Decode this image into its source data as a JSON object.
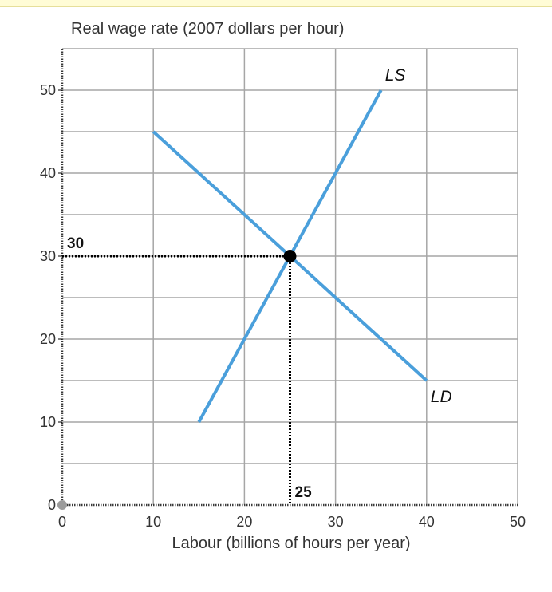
{
  "chart_data": {
    "type": "line",
    "ylabel": "Real wage rate (2007 dollars per hour)",
    "xlabel": "Labour (billions of hours per year)",
    "xlim": [
      0,
      50
    ],
    "ylim": [
      0,
      55
    ],
    "x_ticks": [
      0,
      10,
      20,
      30,
      40,
      50
    ],
    "y_ticks": [
      0,
      10,
      20,
      30,
      40,
      50
    ],
    "grid": true,
    "minor_grid_y": 5,
    "series": [
      {
        "name": "LS",
        "x": [
          15,
          35
        ],
        "y": [
          10,
          50
        ]
      },
      {
        "name": "LD",
        "x": [
          10,
          40
        ],
        "y": [
          45,
          15
        ]
      }
    ],
    "equilibrium": {
      "x": 25,
      "y": 30,
      "x_label": "25",
      "y_label": "30"
    },
    "colors": {
      "curve": "#4a9fdb",
      "grid": "#a6a6a6",
      "axis": "#000000",
      "text": "#333333",
      "origin": "#9b9b9b",
      "top_band": "#fffcd6"
    }
  }
}
